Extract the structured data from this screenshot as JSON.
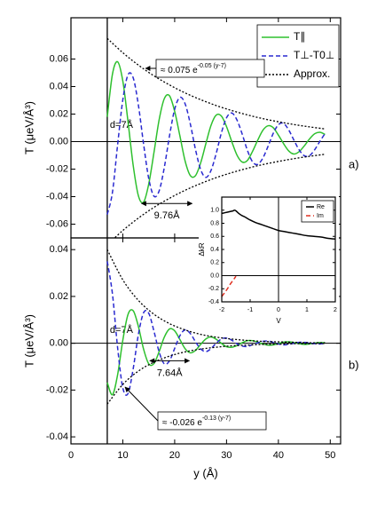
{
  "chart_data": [
    {
      "type": "line",
      "ylabel": "T (μeV/Å³)",
      "xlim": [
        0,
        52
      ],
      "xticks": [
        0,
        10,
        20,
        30,
        40,
        50
      ],
      "xtick_labels": false,
      "ylim": [
        -0.07,
        0.09
      ],
      "yticks": [
        -0.06,
        -0.04,
        -0.02,
        {
          "value": 0,
          "label": "0.00"
        },
        0.02,
        0.04,
        0.06
      ],
      "legend": "upper right",
      "panel_label": "a)",
      "d_label": "d=7Å",
      "d": 7,
      "spacing": 9.76,
      "spacing_label": "9.76Å",
      "annotation": {
        "text": "≈ 0.075 e",
        "exponent": "-0.05 (y-7)"
      },
      "series": [
        {
          "name": "T∥",
          "color": "#2ec02e",
          "style": "solid",
          "x": [
            7,
            8,
            9,
            10,
            11,
            12,
            13,
            14,
            15,
            16,
            17,
            18,
            19,
            20,
            21,
            22,
            23,
            24,
            25,
            26,
            27,
            28,
            29,
            30,
            31,
            32,
            33,
            34,
            35,
            36,
            37,
            38,
            39,
            40,
            41,
            42,
            43,
            44,
            45,
            46,
            47,
            48,
            49
          ],
          "values": [
            0.018,
            0.049,
            0.058,
            0.044,
            0.0145,
            -0.0173,
            -0.0393,
            -0.044,
            -0.0308,
            -0.0081,
            0.0158,
            0.0312,
            0.0333,
            0.022,
            0.0043,
            -0.0139,
            -0.0246,
            -0.0248,
            -0.0156,
            -0.0017,
            0.0117,
            0.0192,
            0.0186,
            0.0109,
            0.0001,
            -0.0097,
            -0.0148,
            -0.0138,
            -0.0072,
            0.0009,
            0.0082,
            0.0115,
            0.0101,
            0.0047,
            -0.0015,
            -0.0068,
            -0.009,
            -0.0073,
            -0.0031,
            0.0019,
            0.0057,
            0.0068,
            0.0052
          ]
        },
        {
          "name": "T⊥-T0⊥",
          "color": "#2a2ad0",
          "style": "dashed",
          "x": [
            7,
            8,
            9,
            10,
            11,
            12,
            13,
            14,
            15,
            16,
            17,
            18,
            19,
            20,
            21,
            22,
            23,
            24,
            25,
            26,
            27,
            28,
            29,
            30,
            31,
            32,
            33,
            34,
            35,
            36,
            37,
            38,
            39,
            40,
            41,
            42,
            43,
            44,
            45,
            46,
            47,
            48,
            49
          ],
          "values": [
            -0.053,
            -0.0369,
            -0.0022,
            0.0304,
            0.0485,
            0.0464,
            0.0266,
            -0.0017,
            -0.0269,
            -0.0396,
            -0.0359,
            -0.0188,
            0.0041,
            0.0235,
            0.0321,
            0.0276,
            0.0131,
            -0.0055,
            -0.0202,
            -0.026,
            -0.021,
            -0.0087,
            0.0062,
            0.0173,
            0.0208,
            0.0158,
            0.0057,
            -0.0061,
            -0.0146,
            -0.0166,
            -0.012,
            -0.0035,
            0.0059,
            0.0123,
            0.0132,
            0.0084,
            0.001,
            -0.006,
            -0.0103,
            -0.0102,
            -0.0059,
            0.0002,
            0.0059
          ]
        },
        {
          "name": "Approx.",
          "color": "#000000",
          "style": "dotted",
          "x": [
            7,
            10,
            13,
            16,
            19,
            22,
            25,
            28,
            31,
            34,
            37,
            40,
            43,
            46,
            49
          ],
          "values": [
            0.075,
            0.0646,
            0.0556,
            0.0478,
            0.0412,
            0.0354,
            0.0305,
            0.0262,
            0.0226,
            0.0194,
            0.0167,
            0.0144,
            0.0124,
            0.0107,
            0.0092
          ],
          "lower": [
            -0.075,
            -0.0646,
            -0.0556,
            -0.0478,
            -0.0412,
            -0.0354,
            -0.0305,
            -0.0262,
            -0.0226,
            -0.0194,
            -0.0167,
            -0.0144,
            -0.0124,
            -0.0107,
            -0.0092
          ]
        }
      ]
    },
    {
      "type": "line",
      "ylabel": "T (μeV/Å³)",
      "xlabel": "y (Å)",
      "xlim": [
        0,
        52
      ],
      "xticks": [
        0,
        10,
        20,
        30,
        40,
        50
      ],
      "xtick_labels": true,
      "ylim": [
        -0.043,
        0.045
      ],
      "yticks": [
        -0.04,
        -0.02,
        {
          "value": 0,
          "label": "0.00"
        },
        0.02,
        0.04
      ],
      "panel_label": "b)",
      "d_label": "d=7Å",
      "d": 7,
      "spacing": 7.64,
      "spacing_label": "7.64Å",
      "annotation": {
        "text": "≈ -0.026 e",
        "exponent": "-0.13 (y-7)"
      },
      "series": [
        {
          "color": "#2ec02e",
          "style": "solid",
          "x": [
            7,
            8,
            9,
            10,
            11,
            12,
            13,
            14,
            15,
            16,
            17,
            18,
            19,
            20,
            21,
            22,
            23,
            24,
            25,
            26,
            27,
            28,
            29,
            30,
            31,
            32,
            33,
            34,
            35,
            36,
            37,
            38,
            39,
            40,
            41,
            42,
            43,
            44,
            45,
            46,
            47,
            48,
            49
          ],
          "values": [
            -0.0168,
            -0.022,
            -0.0134,
            0.0013,
            0.0123,
            0.0139,
            0.0072,
            -0.0025,
            -0.0088,
            -0.0087,
            -0.0036,
            0.0026,
            0.0061,
            0.0053,
            0.0016,
            -0.0023,
            -0.0041,
            -0.0031,
            -0.0005,
            0.0018,
            0.0027,
            0.0017,
            0,
            -0.0015,
            -0.0017,
            -0.001,
            0.0002,
            0.0011,
            0.0011,
            0.0005,
            -0.0003,
            -0.0008,
            -0.0007,
            -0.0001,
            0.0005,
            0.0006,
            0.0003,
            -0.0002,
            -0.0005,
            -0.0003,
            0.0001,
            0.0003,
            0.0002
          ]
        },
        {
          "color": "#2a2ad0",
          "style": "dashed",
          "x": [
            7,
            8,
            9,
            10,
            11,
            12,
            13,
            14,
            15,
            16,
            17,
            18,
            19,
            20,
            21,
            22,
            23,
            24,
            25,
            26,
            27,
            28,
            29,
            30,
            31,
            32,
            33,
            34,
            35,
            36,
            37,
            38,
            39,
            40,
            41,
            42,
            43,
            44,
            45,
            46,
            47,
            48,
            49
          ],
          "values": [
            0.035,
            0.0211,
            -0.002,
            -0.0191,
            -0.0215,
            -0.0109,
            0.0037,
            0.013,
            0.0128,
            0.0052,
            -0.0037,
            -0.0088,
            -0.0075,
            -0.0022,
            0.0032,
            0.0057,
            0.0042,
            0.0007,
            -0.0024,
            -0.0036,
            -0.0023,
            0,
            0.0018,
            0.0022,
            0.0013,
            -0.0002,
            -0.0012,
            -0.0014,
            -0.0006,
            0.0002,
            0.0008,
            0.0009,
            0.0004,
            -0.0003,
            -0.0007,
            -0.0005,
            0,
            0.0004,
            0.0004,
            0.0001,
            -0.0002,
            -0.0003,
            -0.0001
          ]
        },
        {
          "color": "#000000",
          "style": "dotted",
          "x": [
            7,
            10,
            13,
            16,
            19,
            22,
            25,
            28,
            31,
            34,
            37,
            40,
            43,
            46,
            49
          ],
          "values": [
            0.04,
            0.0271,
            0.0183,
            0.0124,
            0.0084,
            0.0057,
            0.0038,
            0.0026,
            0.0018,
            0.0012,
            0.0008,
            0.0006,
            0.0004,
            0.0002,
            0.0002
          ],
          "lower": [
            -0.026,
            -0.0176,
            -0.0119,
            -0.0081,
            -0.0055,
            -0.0037,
            -0.0025,
            -0.0017,
            -0.0011,
            -0.0008,
            -0.0005,
            -0.0004,
            -0.0002,
            -0.0002,
            -0.0001
          ]
        }
      ]
    },
    {
      "type": "line",
      "xlabel": "V",
      "ylabel": "ΔkR",
      "xlim": [
        -2,
        2
      ],
      "xticks": [
        -2,
        -1,
        0,
        1,
        2
      ],
      "xtick_labels": true,
      "ylim": [
        -0.4,
        1.2
      ],
      "yticks": [
        -0.4,
        -0.2,
        {
          "value": 0,
          "label": "0.0"
        },
        0.2,
        0.4,
        0.6,
        0.8,
        {
          "value": 1,
          "label": "1.0"
        }
      ],
      "legend": "upper right",
      "series": [
        {
          "name": "Re",
          "color": "#000000",
          "style": "solid",
          "x": [
            -2,
            -1.9,
            -1.8,
            -1.7,
            -1.6,
            -1.55,
            -1.5,
            -1.4,
            -1.3,
            -1.2,
            -1,
            -0.8,
            -0.6,
            -0.4,
            -0.2,
            0,
            0.25,
            0.5,
            0.75,
            1,
            1.25,
            1.5,
            1.75,
            2
          ],
          "values": [
            0.95,
            0.96,
            0.97,
            0.98,
            0.99,
            1.0,
            0.99,
            0.95,
            0.92,
            0.9,
            0.85,
            0.81,
            0.78,
            0.75,
            0.72,
            0.69,
            0.67,
            0.65,
            0.63,
            0.61,
            0.6,
            0.59,
            0.57,
            0.56
          ]
        },
        {
          "name": "Im",
          "color": "#e03020",
          "style": "dashed",
          "x": [
            -2,
            -1.9,
            -1.8,
            -1.7,
            -1.6,
            -1.5
          ],
          "values": [
            -0.32,
            -0.26,
            -0.2,
            -0.13,
            -0.07,
            -0.01
          ]
        }
      ]
    }
  ]
}
